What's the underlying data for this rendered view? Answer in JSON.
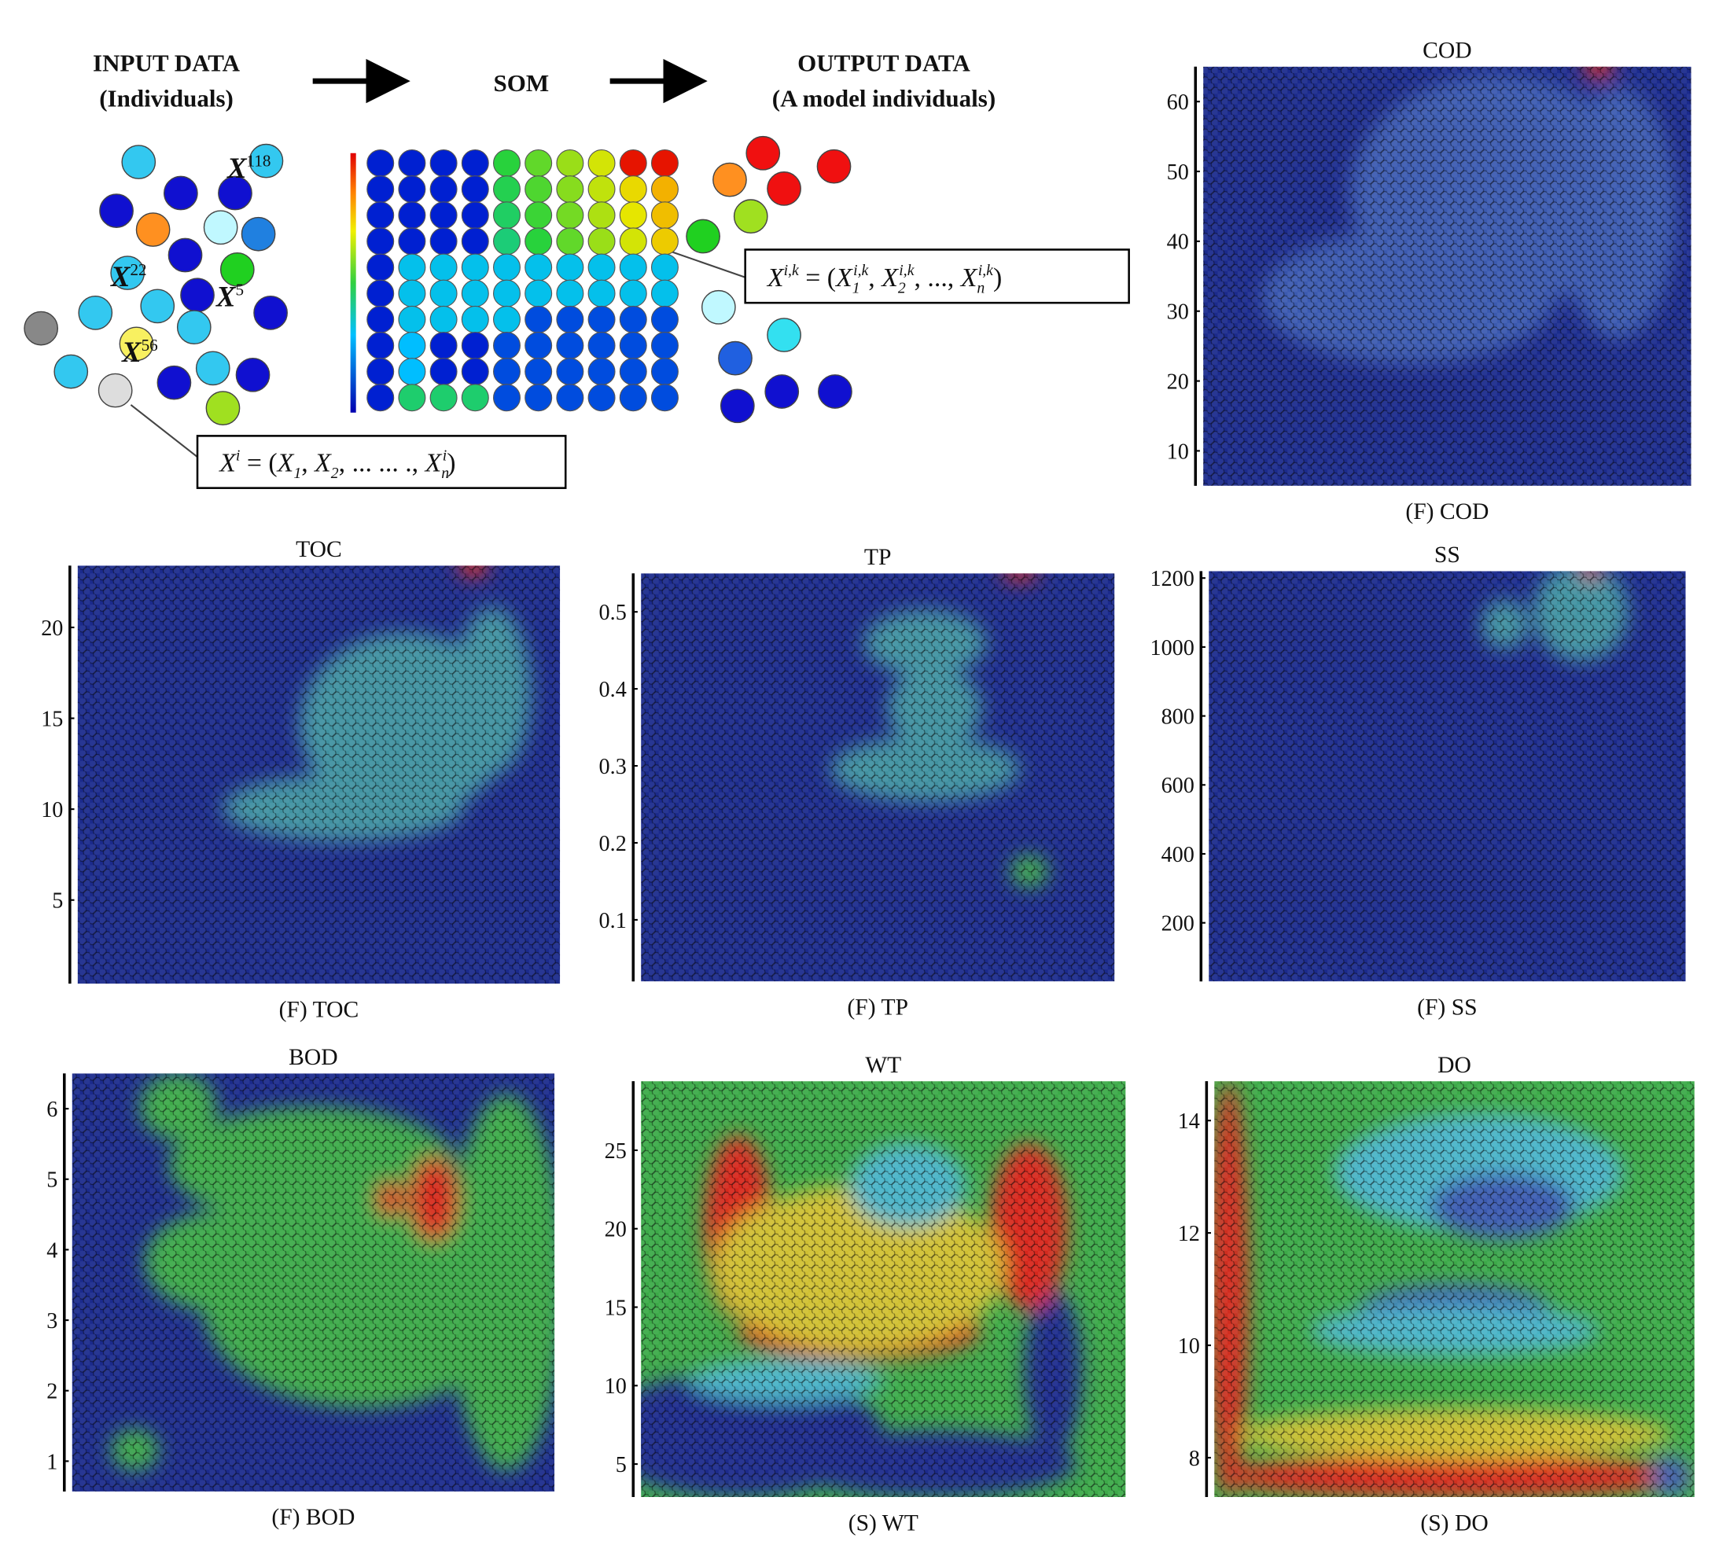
{
  "diagram": {
    "input_title": "INPUT DATA",
    "input_subtitle": "(Individuals)",
    "som_label": "SOM",
    "output_title": "OUTPUT DATA",
    "output_subtitle": "(A model individuals)",
    "labels": [
      {
        "symbol": "X",
        "sup": "118"
      },
      {
        "symbol": "X",
        "sup": "22"
      },
      {
        "symbol": "X",
        "sup": "5"
      },
      {
        "symbol": "X",
        "sup": "56"
      }
    ],
    "input_formula": [
      "X",
      "i",
      " = (",
      "X",
      "1",
      ", ",
      "X",
      "2",
      ", ... ... ., ",
      "X",
      "n",
      "i",
      ")"
    ],
    "output_formula": [
      "X",
      "i,k",
      " = (",
      "X",
      "1",
      "i,k",
      ", ",
      "X",
      "2",
      "i,k",
      ", ..., ",
      "X",
      "n",
      "i,k",
      ")"
    ]
  },
  "panels": [
    {
      "title": "COD",
      "caption": "(F) COD",
      "ylim": [
        5,
        65
      ],
      "yticks": [
        10,
        20,
        30,
        40,
        50,
        60
      ]
    },
    {
      "title": "TOC",
      "caption": "(F) TOC",
      "ylim": [
        0.4,
        23.4
      ],
      "yticks": [
        5,
        10,
        15,
        20
      ]
    },
    {
      "title": "TP",
      "caption": "(F) TP",
      "ylim": [
        0.02,
        0.55
      ],
      "yticks": [
        0.1,
        0.2,
        0.3,
        0.4,
        0.5
      ]
    },
    {
      "title": "SS",
      "caption": "(F) SS",
      "ylim": [
        30,
        1220
      ],
      "yticks": [
        200,
        400,
        600,
        800,
        1000,
        1200
      ]
    },
    {
      "title": "BOD",
      "caption": "(F) BOD",
      "ylim": [
        0.57,
        6.5
      ],
      "yticks": [
        1,
        2,
        3,
        4,
        5,
        6
      ]
    },
    {
      "title": "WT",
      "caption": "(S) WT",
      "ylim": [
        2.9,
        29.4
      ],
      "yticks": [
        5,
        10,
        15,
        20,
        25
      ]
    },
    {
      "title": "DO",
      "caption": "(S) DO",
      "ylim": [
        7.3,
        14.7
      ],
      "yticks": [
        8,
        10,
        12,
        14
      ]
    }
  ]
}
